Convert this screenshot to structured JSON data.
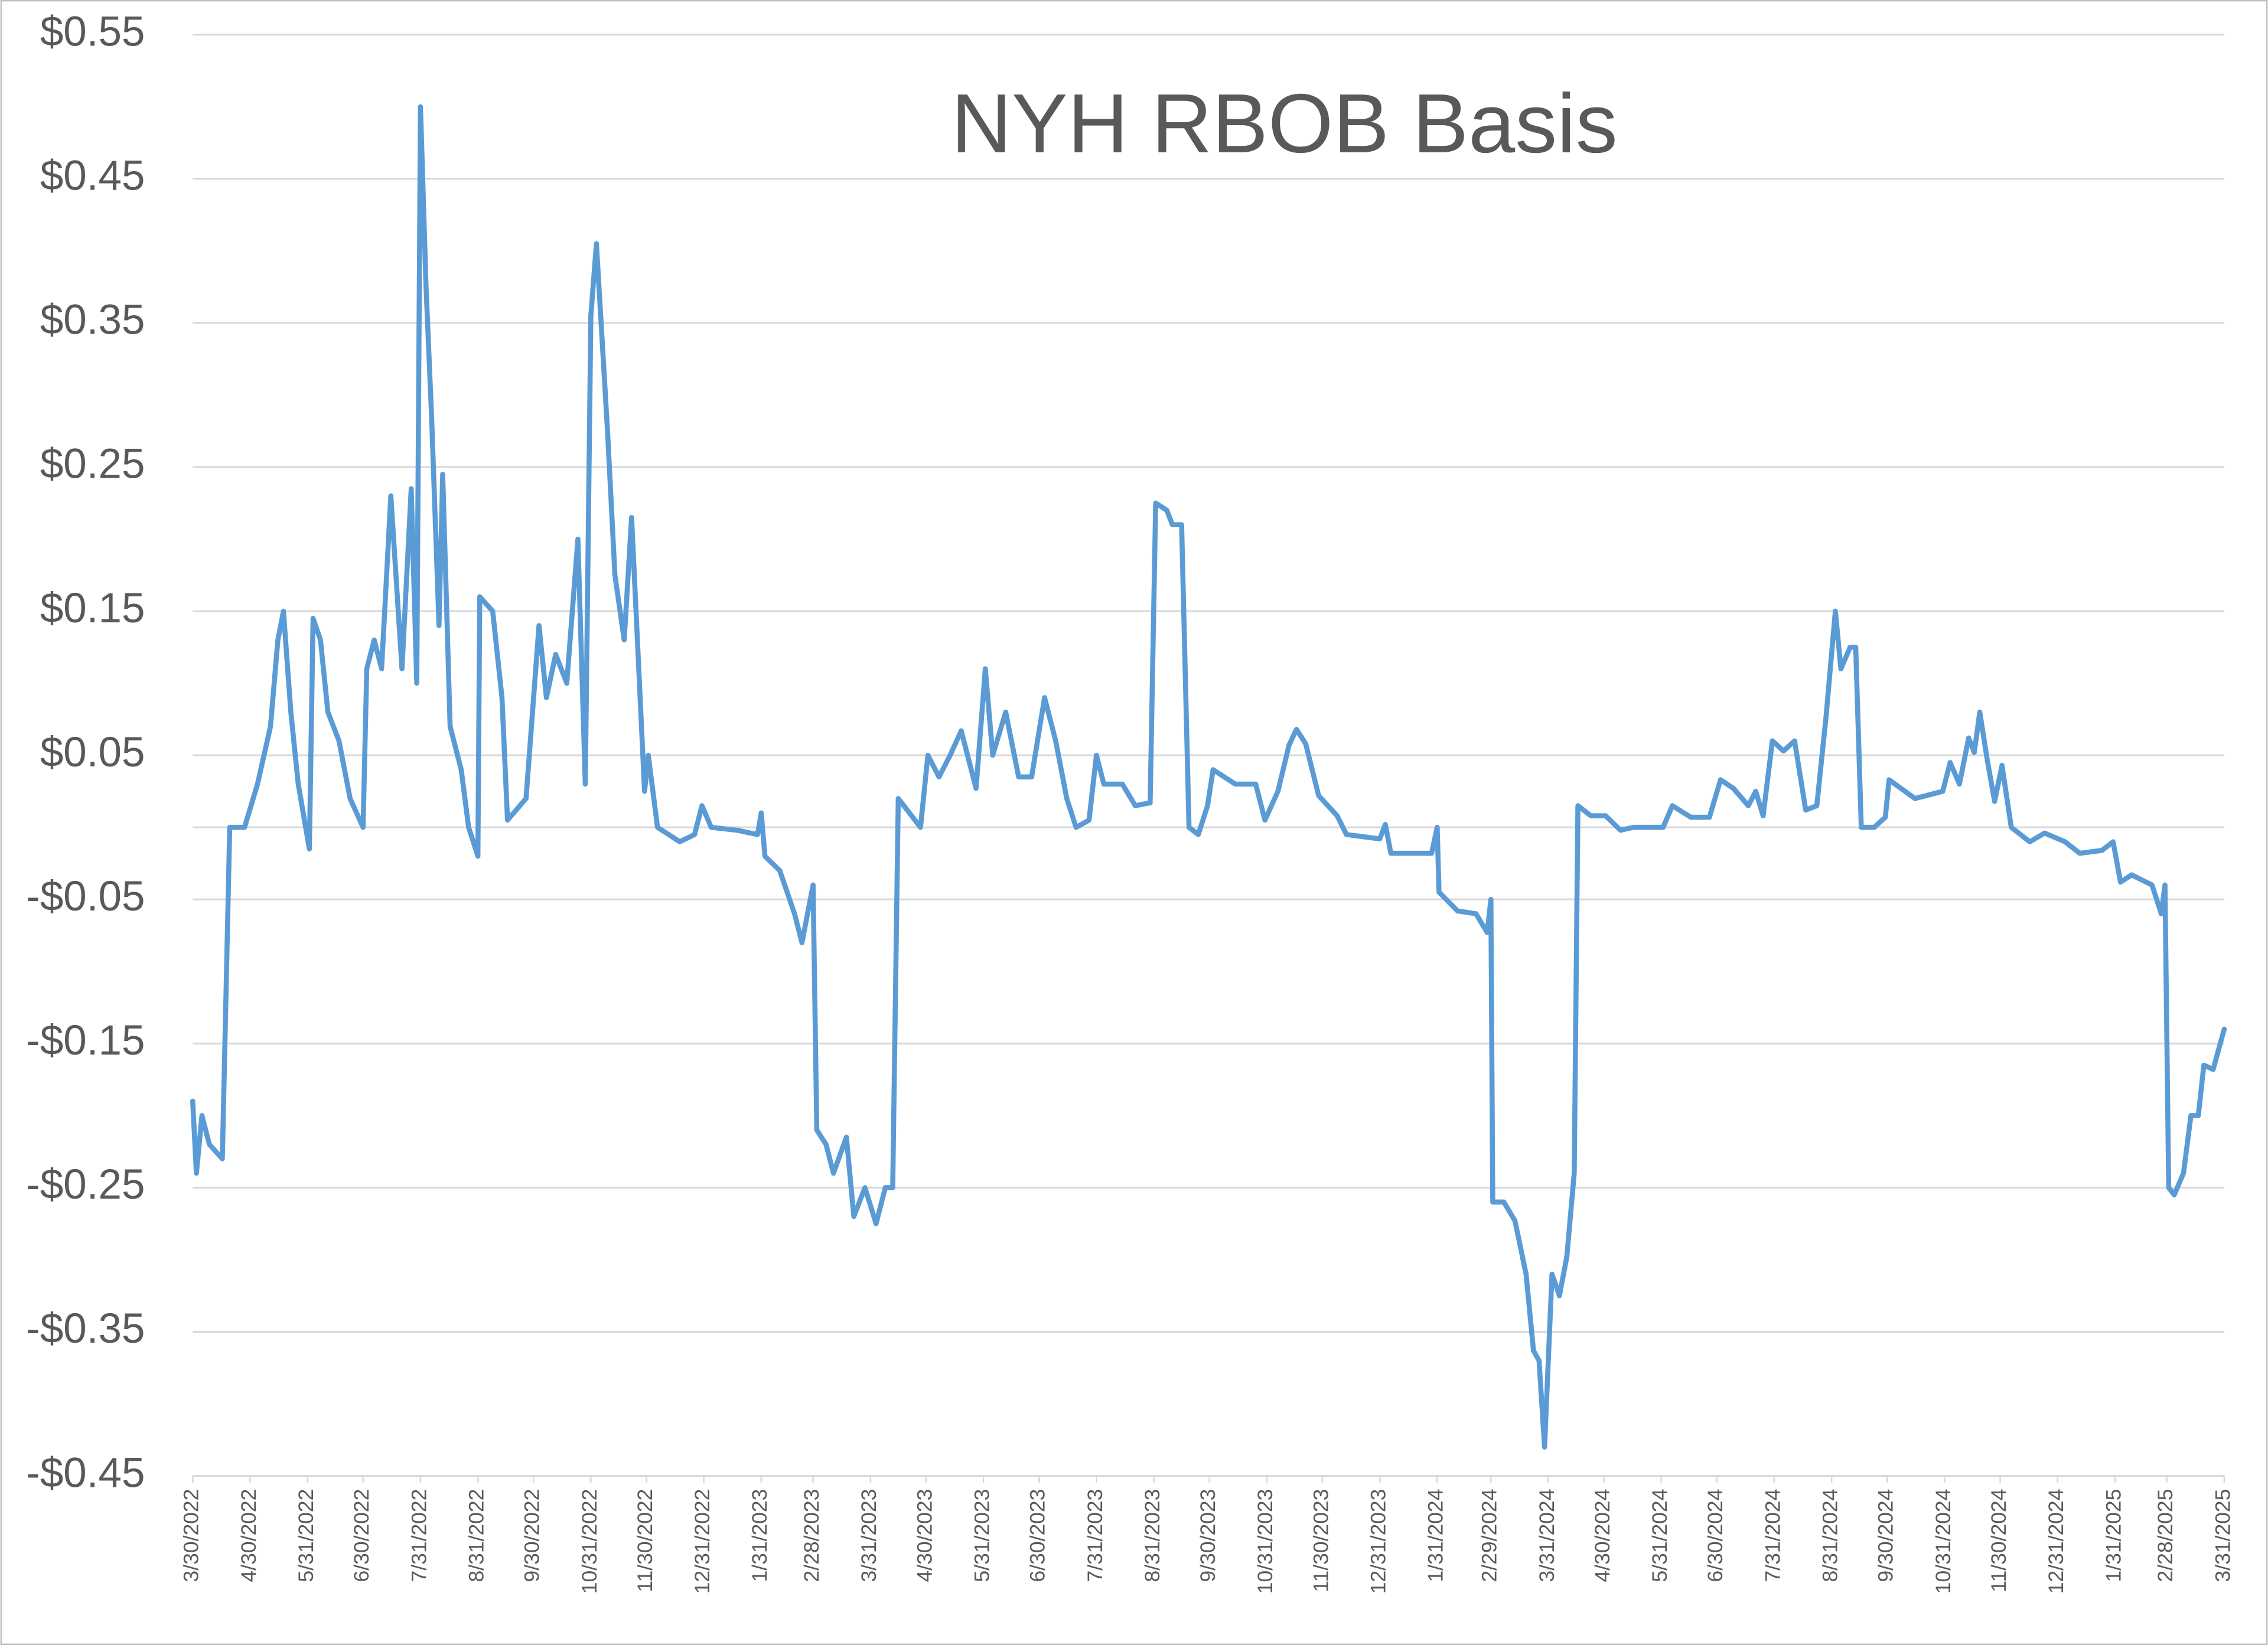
{
  "chart_data": {
    "type": "line",
    "title": "NYH RBOB Basis",
    "color": "#5b9bd5",
    "grid": true,
    "ylim": [
      -0.45,
      0.55
    ],
    "yticks": [
      {
        "value": 0.55,
        "label": "$0.55"
      },
      {
        "value": 0.45,
        "label": "$0.45"
      },
      {
        "value": 0.35,
        "label": "$0.35"
      },
      {
        "value": 0.25,
        "label": "$0.25"
      },
      {
        "value": 0.15,
        "label": "$0.15"
      },
      {
        "value": 0.05,
        "label": "$0.05"
      },
      {
        "value": -0.05,
        "label": "-$0.05"
      },
      {
        "value": -0.15,
        "label": "-$0.15"
      },
      {
        "value": -0.25,
        "label": "-$0.25"
      },
      {
        "value": -0.35,
        "label": "-$0.35"
      },
      {
        "value": -0.45,
        "label": "-$0.45"
      }
    ],
    "xlim": [
      "3/30/2022",
      "3/31/2025"
    ],
    "xticks": [
      "3/30/2022",
      "4/30/2022",
      "5/31/2022",
      "6/30/2022",
      "7/31/2022",
      "8/31/2022",
      "9/30/2022",
      "10/31/2022",
      "11/30/2022",
      "12/31/2022",
      "1/31/2023",
      "2/28/2023",
      "3/31/2023",
      "4/30/2023",
      "5/31/2023",
      "6/30/2023",
      "7/31/2023",
      "8/31/2023",
      "9/30/2023",
      "10/31/2023",
      "11/30/2023",
      "12/31/2023",
      "1/31/2024",
      "2/29/2024",
      "3/31/2024",
      "4/30/2024",
      "5/31/2024",
      "6/30/2024",
      "7/31/2024",
      "8/31/2024",
      "9/30/2024",
      "10/31/2024",
      "11/30/2024",
      "12/31/2024",
      "1/31/2025",
      "2/28/2025",
      "3/31/2025"
    ],
    "x": [
      "3/30/2022",
      "4/1/2022",
      "4/4/2022",
      "4/8/2022",
      "4/15/2022",
      "4/19/2022",
      "4/27/2022",
      "5/4/2022",
      "5/11/2022",
      "5/15/2022",
      "5/18/2022",
      "5/22/2022",
      "5/26/2022",
      "6/1/2022",
      "6/3/2022",
      "6/7/2022",
      "6/11/2022",
      "6/17/2022",
      "6/23/2022",
      "6/30/2022",
      "7/2/2022",
      "7/6/2022",
      "7/10/2022",
      "7/15/2022",
      "7/21/2022",
      "7/26/2022",
      "7/29/2022",
      "7/31/2022",
      "8/3/2022",
      "8/6/2022",
      "8/10/2022",
      "8/12/2022",
      "8/16/2022",
      "8/22/2022",
      "8/26/2022",
      "8/31/2022",
      "9/1/2022",
      "9/8/2022",
      "9/13/2022",
      "9/16/2022",
      "9/26/2022",
      "10/3/2022",
      "10/7/2022",
      "10/12/2022",
      "10/18/2022",
      "10/24/2022",
      "10/28/2022",
      "10/31/2022",
      "11/3/2022",
      "11/9/2022",
      "11/13/2022",
      "11/18/2022",
      "11/22/2022",
      "11/29/2022",
      "12/1/2022",
      "12/6/2022",
      "12/18/2022",
      "12/26/2022",
      "12/30/2022",
      "1/4/2023",
      "1/18/2023",
      "1/29/2023",
      "1/31/2023",
      "2/2/2023",
      "2/10/2023",
      "2/18/2023",
      "2/22/2023",
      "2/28/2023",
      "3/2/2023",
      "3/7/2023",
      "3/11/2023",
      "3/18/2023",
      "3/22/2023",
      "3/28/2023",
      "4/3/2023",
      "4/8/2023",
      "4/12/2023",
      "4/15/2023",
      "4/21/2023",
      "4/27/2023",
      "5/1/2023",
      "5/7/2023",
      "5/13/2023",
      "5/19/2023",
      "5/27/2023",
      "6/1/2023",
      "6/5/2023",
      "6/12/2023",
      "6/19/2023",
      "6/26/2023",
      "7/3/2023",
      "7/9/2023",
      "7/15/2023",
      "7/20/2023",
      "7/27/2023",
      "7/31/2023",
      "8/4/2023",
      "8/14/2023",
      "8/21/2023",
      "8/29/2023",
      "9/1/2023",
      "9/7/2023",
      "9/10/2023",
      "9/15/2023",
      "9/19/2023",
      "9/24/2023",
      "9/29/2023",
      "10/2/2023",
      "10/14/2023",
      "10/25/2023",
      "10/30/2023",
      "11/6/2023",
      "11/12/2023",
      "11/16/2023",
      "11/21/2023",
      "11/28/2023",
      "12/8/2023",
      "12/13/2023",
      "12/31/2023",
      "1/3/2024",
      "1/6/2024",
      "1/20/2024",
      "1/28/2024",
      "1/31/2024",
      "2/1/2024",
      "2/11/2024",
      "2/21/2024",
      "2/27/2024",
      "2/29/2024",
      "3/1/2024",
      "3/7/2024",
      "3/13/2024",
      "3/19/2024",
      "3/23/2024",
      "3/26/2024",
      "3/29/2024",
      "4/2/2024",
      "4/6/2024",
      "4/10/2024",
      "4/14/2024",
      "4/16/2024",
      "4/23/2024",
      "5/1/2024",
      "5/9/2024",
      "5/16/2024",
      "6/1/2024",
      "6/6/2024",
      "6/16/2024",
      "6/26/2024",
      "7/2/2024",
      "7/9/2024",
      "7/17/2024",
      "7/21/2024",
      "7/25/2024",
      "7/30/2024",
      "8/5/2024",
      "8/11/2024",
      "8/17/2024",
      "8/23/2024",
      "8/28/2024",
      "9/2/2024",
      "9/5/2024",
      "9/10/2024",
      "9/13/2024",
      "9/16/2024",
      "9/23/2024",
      "9/29/2024",
      "10/1/2024",
      "10/15/2024",
      "10/30/2024",
      "11/3/2024",
      "11/8/2024",
      "11/13/2024",
      "11/16/2024",
      "11/19/2024",
      "11/23/2024",
      "11/27/2024",
      "12/1/2024",
      "12/6/2024",
      "12/16/2024",
      "12/24/2024",
      "1/4/2025",
      "1/12/2025",
      "1/24/2025",
      "1/30/2025",
      "2/3/2025",
      "2/9/2025",
      "2/20/2025",
      "2/25/2025",
      "2/27/2025",
      "3/1/2025",
      "3/4/2025",
      "3/9/2025",
      "3/13/2025",
      "3/17/2025",
      "3/20/2025",
      "3/25/2025",
      "3/31/2025"
    ],
    "values": [
      -0.19,
      -0.24,
      -0.2,
      -0.22,
      -0.23,
      0.0,
      0.0,
      0.03,
      0.07,
      0.13,
      0.15,
      0.08,
      0.03,
      -0.015,
      0.145,
      0.13,
      0.08,
      0.06,
      0.02,
      0.0,
      0.11,
      0.13,
      0.11,
      0.23,
      0.11,
      0.235,
      0.1,
      0.5,
      0.375,
      0.285,
      0.14,
      0.245,
      0.07,
      0.04,
      0.0,
      -0.02,
      0.16,
      0.15,
      0.09,
      0.005,
      0.02,
      0.14,
      0.09,
      0.12,
      0.1,
      0.2,
      0.03,
      0.355,
      0.405,
      0.275,
      0.175,
      0.13,
      0.215,
      0.025,
      0.05,
      0.0,
      -0.01,
      -0.005,
      0.015,
      0.0,
      -0.002,
      -0.005,
      0.01,
      -0.02,
      -0.03,
      -0.06,
      -0.08,
      -0.04,
      -0.21,
      -0.22,
      -0.24,
      -0.215,
      -0.27,
      -0.25,
      -0.275,
      -0.25,
      -0.25,
      0.02,
      0.01,
      0.0,
      0.05,
      0.035,
      0.05,
      0.067,
      0.027,
      0.11,
      0.05,
      0.08,
      0.035,
      0.035,
      0.09,
      0.06,
      0.02,
      0.0,
      0.005,
      0.05,
      0.03,
      0.03,
      0.015,
      0.017,
      0.225,
      0.22,
      0.21,
      0.21,
      0.0,
      -0.005,
      0.015,
      0.04,
      0.03,
      0.03,
      0.005,
      0.025,
      0.057,
      0.068,
      0.058,
      0.022,
      0.008,
      -0.005,
      -0.008,
      0.002,
      -0.018,
      -0.018,
      -0.018,
      0.0,
      -0.045,
      -0.058,
      -0.06,
      -0.073,
      -0.05,
      -0.26,
      -0.26,
      -0.273,
      -0.31,
      -0.363,
      -0.37,
      -0.43,
      -0.31,
      -0.325,
      -0.298,
      -0.24,
      0.015,
      0.008,
      0.008,
      -0.002,
      0.0,
      0.0,
      0.015,
      0.007,
      0.007,
      0.033,
      0.027,
      0.015,
      0.025,
      0.008,
      0.06,
      0.053,
      0.06,
      0.012,
      0.015,
      0.077,
      0.15,
      0.11,
      0.125,
      0.125,
      0.0,
      0.0,
      0.007,
      0.033,
      0.02,
      0.025,
      0.045,
      0.03,
      0.062,
      0.052,
      0.08,
      0.047,
      0.018,
      0.043,
      0.0,
      -0.01,
      -0.004,
      -0.01,
      -0.018,
      -0.016,
      -0.01,
      -0.038,
      -0.033,
      -0.04,
      -0.06,
      -0.04,
      -0.25,
      -0.255,
      -0.24,
      -0.2,
      -0.2,
      -0.165,
      -0.168,
      -0.14
    ]
  }
}
